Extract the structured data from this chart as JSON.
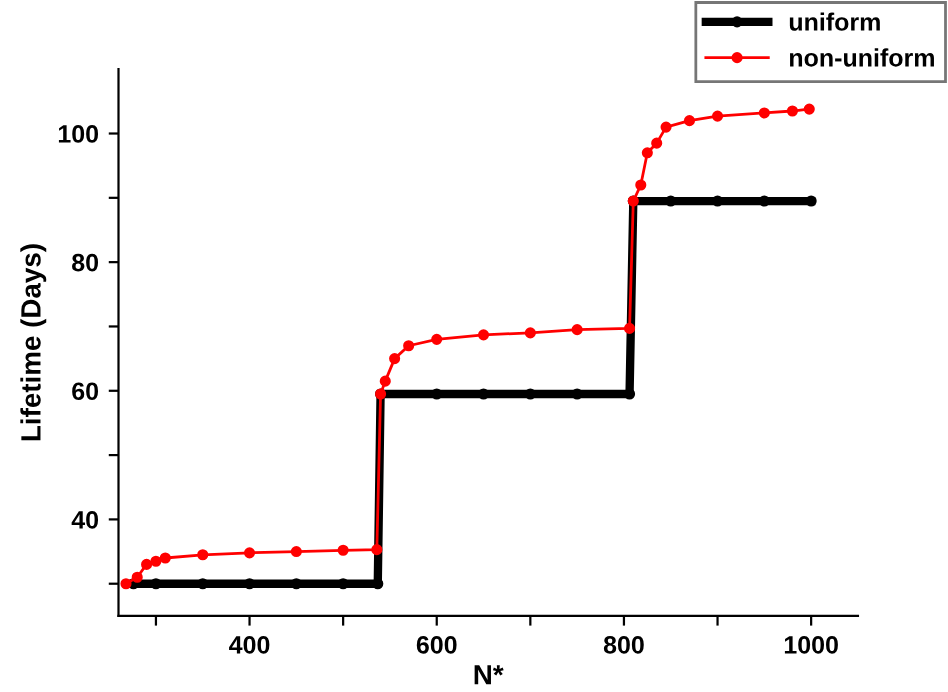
{
  "chart_data": {
    "type": "line",
    "xlabel": "N*",
    "ylabel": "Lifetime (Days)",
    "xlim": [
      260,
      1050
    ],
    "xticks": [
      {
        "value": 300,
        "label": null
      },
      400,
      {
        "value": 500,
        "label": null
      },
      600,
      {
        "value": 700,
        "label": null
      },
      800,
      {
        "value": 900,
        "label": null
      },
      1000
    ],
    "ylim": [
      25,
      110
    ],
    "yticks": [
      {
        "value": 30,
        "label": null
      },
      40,
      {
        "value": 50,
        "label": null
      },
      60,
      {
        "value": 70,
        "label": null
      },
      80,
      {
        "value": 90,
        "label": null
      },
      100
    ],
    "grid": false,
    "legend": "top right",
    "marker": "circle",
    "line_style": "solid",
    "series": [
      {
        "name": "uniform",
        "color": "#000000",
        "x": [
          276,
          300,
          350,
          400,
          450,
          500,
          537,
          540,
          600,
          650,
          700,
          750,
          806,
          810,
          850,
          900,
          950,
          1000
        ],
        "values": [
          30,
          30,
          30,
          30,
          30,
          30,
          30,
          59.5,
          59.5,
          59.5,
          59.5,
          59.5,
          59.5,
          89.5,
          89.5,
          89.5,
          89.5,
          89.5
        ]
      },
      {
        "name": "non-uniform",
        "color": "#ff0000",
        "x": [
          268,
          280,
          290,
          300,
          310,
          350,
          400,
          450,
          500,
          536,
          540,
          545,
          555,
          570,
          600,
          650,
          700,
          750,
          806,
          810,
          818,
          825,
          835,
          845,
          870,
          900,
          950,
          980,
          998
        ],
        "values": [
          30,
          31,
          33,
          33.5,
          34,
          34.5,
          34.8,
          35,
          35.2,
          35.3,
          59.5,
          61.5,
          65,
          67,
          68,
          68.7,
          69,
          69.5,
          69.7,
          89.5,
          92,
          97,
          98.5,
          101,
          102,
          102.7,
          103.2,
          103.5,
          103.8
        ]
      }
    ]
  }
}
